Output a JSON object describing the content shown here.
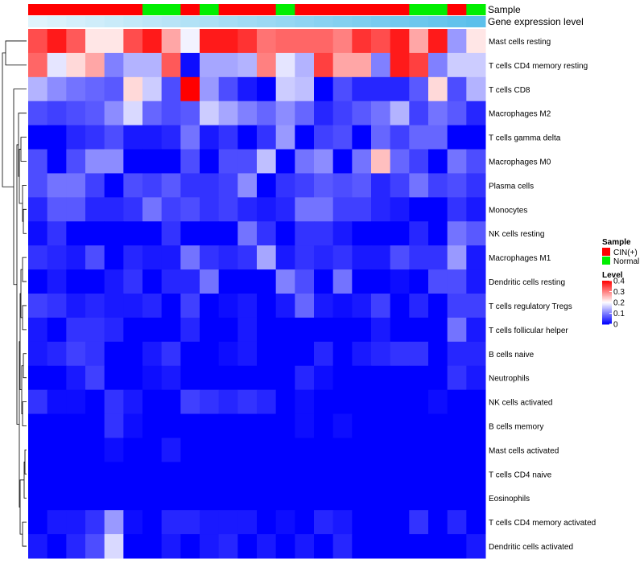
{
  "chart_data": {
    "type": "heatmap",
    "title": "",
    "row_labels": [
      "Mast cells resting",
      "T cells CD4 memory resting",
      "T cells CD8",
      "Macrophages M2",
      "T cells gamma delta",
      "Macrophages M0",
      "Plasma cells",
      "Monocytes",
      "NK cells resting",
      "Macrophages M1",
      "Dendritic cells resting",
      "T cells regulatory  Tregs",
      "T cells follicular helper",
      "B cells naive",
      "Neutrophils",
      "NK cells activated",
      "B cells memory",
      "Mast cells activated",
      "T cells CD4 naive",
      "Eosinophils",
      "T cells CD4 memory activated",
      "Dendritic cells activated"
    ],
    "sample_groups": [
      "CIN(+)",
      "CIN(+)",
      "CIN(+)",
      "CIN(+)",
      "CIN(+)",
      "CIN(+)",
      "Normal",
      "Normal",
      "CIN(+)",
      "Normal",
      "CIN(+)",
      "CIN(+)",
      "CIN(+)",
      "Normal",
      "CIN(+)",
      "CIN(+)",
      "CIN(+)",
      "CIN(+)",
      "CIN(+)",
      "CIN(+)",
      "Normal",
      "Normal",
      "CIN(+)",
      "Normal"
    ],
    "values": [
      [
        0.34,
        0.38,
        0.33,
        0.22,
        0.22,
        0.34,
        0.38,
        0.27,
        0.19,
        0.38,
        0.38,
        0.36,
        0.31,
        0.32,
        0.32,
        0.32,
        0.3,
        0.36,
        0.34,
        0.38,
        0.27,
        0.38,
        0.12,
        0.22
      ],
      [
        0.32,
        0.18,
        0.23,
        0.27,
        0.1,
        0.14,
        0.14,
        0.33,
        0.01,
        0.13,
        0.13,
        0.14,
        0.3,
        0.18,
        0.14,
        0.35,
        0.27,
        0.27,
        0.1,
        0.38,
        0.35,
        0.1,
        0.16,
        0.16
      ],
      [
        0.14,
        0.11,
        0.09,
        0.08,
        0.07,
        0.23,
        0.16,
        0.06,
        0.4,
        0.12,
        0.06,
        0.02,
        0.0,
        0.16,
        0.15,
        0.0,
        0.06,
        0.03,
        0.03,
        0.03,
        0.07,
        0.23,
        0.06,
        0.14
      ],
      [
        0.06,
        0.05,
        0.06,
        0.07,
        0.11,
        0.17,
        0.08,
        0.06,
        0.07,
        0.16,
        0.13,
        0.1,
        0.08,
        0.11,
        0.08,
        0.03,
        0.05,
        0.07,
        0.09,
        0.14,
        0.05,
        0.09,
        0.07,
        0.03
      ],
      [
        0.0,
        0.0,
        0.03,
        0.04,
        0.06,
        0.02,
        0.02,
        0.03,
        0.09,
        0.02,
        0.04,
        0.0,
        0.04,
        0.12,
        0.0,
        0.05,
        0.06,
        0.0,
        0.08,
        0.05,
        0.08,
        0.08,
        0.0,
        0.0
      ],
      [
        0.06,
        0.0,
        0.06,
        0.11,
        0.11,
        0.0,
        0.0,
        0.0,
        0.06,
        0.0,
        0.06,
        0.06,
        0.15,
        0.0,
        0.09,
        0.11,
        0.0,
        0.09,
        0.25,
        0.08,
        0.05,
        0.0,
        0.09,
        0.06
      ],
      [
        0.06,
        0.09,
        0.09,
        0.05,
        0.0,
        0.06,
        0.05,
        0.07,
        0.04,
        0.04,
        0.05,
        0.11,
        0.0,
        0.04,
        0.05,
        0.07,
        0.06,
        0.07,
        0.03,
        0.05,
        0.09,
        0.05,
        0.06,
        0.04
      ],
      [
        0.03,
        0.07,
        0.07,
        0.03,
        0.03,
        0.04,
        0.09,
        0.05,
        0.06,
        0.04,
        0.05,
        0.03,
        0.02,
        0.03,
        0.09,
        0.09,
        0.05,
        0.05,
        0.03,
        0.02,
        0.0,
        0.0,
        0.04,
        0.02
      ],
      [
        0.01,
        0.04,
        0.0,
        0.0,
        0.0,
        0.0,
        0.0,
        0.04,
        0.0,
        0.0,
        0.0,
        0.09,
        0.04,
        0.0,
        0.04,
        0.04,
        0.02,
        0.0,
        0.0,
        0.0,
        0.03,
        0.0,
        0.09,
        0.07
      ],
      [
        0.04,
        0.03,
        0.02,
        0.06,
        0.0,
        0.03,
        0.02,
        0.02,
        0.09,
        0.04,
        0.03,
        0.04,
        0.13,
        0.02,
        0.04,
        0.03,
        0.04,
        0.02,
        0.02,
        0.06,
        0.04,
        0.04,
        0.12,
        0.02
      ],
      [
        0.0,
        0.02,
        0.0,
        0.0,
        0.02,
        0.04,
        0.0,
        0.03,
        0.03,
        0.09,
        0.0,
        0.0,
        0.0,
        0.1,
        0.06,
        0.0,
        0.09,
        0.0,
        0.0,
        0.01,
        0.0,
        0.06,
        0.06,
        0.02
      ],
      [
        0.05,
        0.04,
        0.02,
        0.03,
        0.02,
        0.02,
        0.03,
        0.0,
        0.05,
        0.0,
        0.01,
        0.02,
        0.0,
        0.02,
        0.08,
        0.02,
        0.01,
        0.02,
        0.05,
        0.0,
        0.03,
        0.0,
        0.05,
        0.05
      ],
      [
        0.02,
        0.0,
        0.04,
        0.04,
        0.03,
        0.0,
        0.0,
        0.0,
        0.03,
        0.0,
        0.0,
        0.02,
        0.0,
        0.0,
        0.0,
        0.0,
        0.0,
        0.0,
        0.02,
        0.0,
        0.0,
        0.0,
        0.09,
        0.02
      ],
      [
        0.02,
        0.03,
        0.05,
        0.04,
        0.0,
        0.0,
        0.02,
        0.04,
        0.0,
        0.0,
        0.01,
        0.02,
        0.0,
        0.0,
        0.0,
        0.03,
        0.0,
        0.02,
        0.03,
        0.04,
        0.04,
        0.0,
        0.03,
        0.03
      ],
      [
        0.0,
        0.0,
        0.02,
        0.05,
        0.0,
        0.0,
        0.01,
        0.02,
        0.0,
        0.0,
        0.0,
        0.0,
        0.0,
        0.0,
        0.03,
        0.01,
        0.0,
        0.0,
        0.0,
        0.0,
        0.0,
        0.0,
        0.04,
        0.02
      ],
      [
        0.04,
        0.01,
        0.01,
        0.0,
        0.04,
        0.02,
        0.0,
        0.0,
        0.05,
        0.04,
        0.03,
        0.04,
        0.03,
        0.0,
        0.01,
        0.0,
        0.0,
        0.0,
        0.0,
        0.0,
        0.0,
        0.01,
        0.0,
        0.0
      ],
      [
        0.0,
        0.0,
        0.0,
        0.0,
        0.04,
        0.01,
        0.0,
        0.0,
        0.0,
        0.0,
        0.0,
        0.0,
        0.0,
        0.0,
        0.01,
        0.0,
        0.01,
        0.0,
        0.0,
        0.0,
        0.0,
        0.0,
        0.0,
        0.0
      ],
      [
        0.0,
        0.0,
        0.0,
        0.0,
        0.01,
        0.0,
        0.0,
        0.02,
        0.0,
        0.0,
        0.0,
        0.0,
        0.0,
        0.0,
        0.0,
        0.0,
        0.0,
        0.0,
        0.0,
        0.0,
        0.0,
        0.0,
        0.0,
        0.0
      ],
      [
        0.0,
        0.0,
        0.0,
        0.0,
        0.0,
        0.0,
        0.0,
        0.0,
        0.0,
        0.0,
        0.0,
        0.0,
        0.0,
        0.0,
        0.0,
        0.0,
        0.0,
        0.0,
        0.0,
        0.0,
        0.0,
        0.0,
        0.0,
        0.0
      ],
      [
        0.0,
        0.0,
        0.0,
        0.0,
        0.0,
        0.0,
        0.0,
        0.0,
        0.0,
        0.0,
        0.0,
        0.0,
        0.0,
        0.0,
        0.0,
        0.0,
        0.0,
        0.0,
        0.0,
        0.0,
        0.0,
        0.0,
        0.0,
        0.0
      ],
      [
        0.0,
        0.02,
        0.02,
        0.04,
        0.12,
        0.01,
        0.0,
        0.03,
        0.03,
        0.02,
        0.02,
        0.02,
        0.0,
        0.01,
        0.0,
        0.03,
        0.02,
        0.0,
        0.0,
        0.0,
        0.04,
        0.0,
        0.03,
        0.0
      ],
      [
        0.02,
        0.0,
        0.03,
        0.06,
        0.17,
        0.0,
        0.0,
        0.02,
        0.0,
        0.02,
        0.03,
        0.0,
        0.02,
        0.0,
        0.02,
        0.0,
        0.03,
        0.0,
        0.0,
        0.0,
        0.0,
        0.0,
        0.0,
        0.02
      ]
    ],
    "annotation_tracks": [
      "Sample",
      "Gene expression level"
    ],
    "legend_sample": {
      "title": "Sample",
      "entries": [
        {
          "label": "CIN(+)",
          "color": "#FF0000"
        },
        {
          "label": "Normal",
          "color": "#00EE00"
        }
      ]
    },
    "legend_level": {
      "title": "Level",
      "ticks": [
        "0.4",
        "0.3",
        "0.2",
        "0.1",
        "0"
      ],
      "tick_values": [
        0.4,
        0.3,
        0.2,
        0.1,
        0.0
      ],
      "range": [
        0,
        0.4
      ],
      "low_color": "#0000FF",
      "mid_color": "#FFFFFF",
      "high_color": "#FF0000"
    },
    "expression_bar_colors": [
      "#E0F4FC",
      "#5BC0EB"
    ],
    "xlabel": "",
    "ylabel": ""
  }
}
